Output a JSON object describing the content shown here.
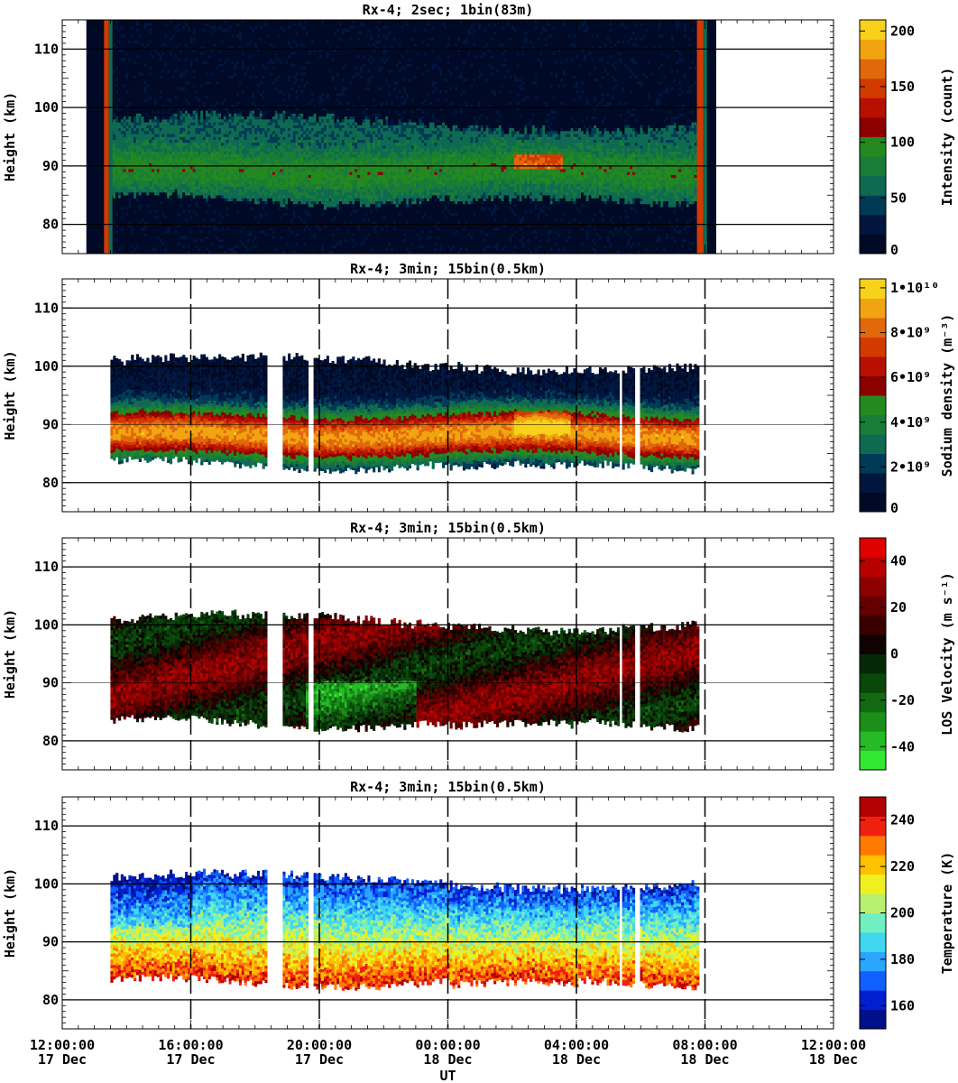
{
  "chart_data": [
    {
      "type": "heatmap",
      "title": "Rx-4;  2sec; 1bin(83m)",
      "ylabel": "Height (km)",
      "ylim": [
        75,
        115
      ],
      "yticks": [
        80,
        90,
        100,
        110
      ],
      "colorbar": {
        "label": "Intensity (count)",
        "ticks": [
          "0",
          "50",
          "100",
          "150",
          "200"
        ],
        "tick_values": [
          0,
          50,
          100,
          150,
          200
        ],
        "range": [
          0,
          210
        ],
        "colors": [
          "#000a26",
          "#00163f",
          "#003b55",
          "#0f6a52",
          "#1a7d37",
          "#248a1f",
          "#8c0000",
          "#b81000",
          "#d23a00",
          "#e2680c",
          "#f0a40f",
          "#f7d11a"
        ]
      },
      "data_range_hours": [
        13.5,
        31.8
      ],
      "layer": {
        "bottom_km": 84,
        "top_km": 96,
        "peak_km": 89
      }
    },
    {
      "type": "heatmap",
      "title": "Rx-4; 3min; 15bin(0.5km)",
      "ylabel": "Height (km)",
      "ylim": [
        75,
        115
      ],
      "yticks": [
        80,
        90,
        100,
        110
      ],
      "colorbar": {
        "label": "Sodium density (m⁻³)",
        "ticks": [
          "0",
          "2•10⁹",
          "4•10⁹",
          "6•10⁹",
          "8•10⁹",
          "1•10¹⁰"
        ],
        "tick_values": [
          0,
          2,
          4,
          6,
          8,
          10
        ],
        "range": [
          0,
          10.4
        ],
        "colors": [
          "#000a26",
          "#00163f",
          "#003b55",
          "#0f6a52",
          "#1a7d37",
          "#248a1f",
          "#8c0000",
          "#b81000",
          "#d23a00",
          "#e2680c",
          "#f0a40f",
          "#f7d11a"
        ]
      },
      "data_range_hours": [
        13.5,
        31.8
      ],
      "layer": {
        "bottom_km": 83,
        "top_km": 99,
        "peak_km": 88
      }
    },
    {
      "type": "heatmap",
      "title": "Rx-4; 3min; 15bin(0.5km)",
      "ylabel": "Height (km)",
      "ylim": [
        75,
        115
      ],
      "yticks": [
        80,
        90,
        100,
        110
      ],
      "colorbar": {
        "label": "LOS Velocity (m s⁻¹)",
        "ticks": [
          "-40",
          "-20",
          "0",
          "20",
          "40"
        ],
        "tick_values": [
          -40,
          -20,
          0,
          20,
          40
        ],
        "range": [
          -50,
          50
        ],
        "colors": [
          "#33e833",
          "#25bb25",
          "#1a8f1a",
          "#116a11",
          "#0a470a",
          "#052805",
          "#0f0200",
          "#3a0000",
          "#640000",
          "#8e0000",
          "#b80000",
          "#e00000"
        ]
      },
      "data_range_hours": [
        13.5,
        31.8
      ],
      "layer": {
        "bottom_km": 83,
        "top_km": 99,
        "peak_km": 90
      }
    },
    {
      "type": "heatmap",
      "title": "Rx-4; 3min; 15bin(0.5km)",
      "ylabel": "Height (km)",
      "ylim": [
        75,
        115
      ],
      "yticks": [
        80,
        90,
        100,
        110
      ],
      "colorbar": {
        "label": "Temperature (K)",
        "ticks": [
          "160",
          "180",
          "200",
          "220",
          "240"
        ],
        "tick_values": [
          160,
          180,
          200,
          220,
          240
        ],
        "range": [
          150,
          250
        ],
        "colors": [
          "#00108a",
          "#0020d0",
          "#1060ff",
          "#2aa6ff",
          "#40d8f0",
          "#70f0c0",
          "#b8f070",
          "#f0f020",
          "#ffc000",
          "#ff7a00",
          "#f02010",
          "#b40000"
        ]
      },
      "data_range_hours": [
        13.5,
        31.8
      ],
      "layer": {
        "bottom_km": 83,
        "top_km": 99,
        "peak_km": 88
      }
    }
  ],
  "x_axis": {
    "label": "UT",
    "range_hours": [
      12,
      36
    ],
    "ticks": [
      {
        "time": "12:00:00",
        "date": "17 Dec",
        "hours": 12
      },
      {
        "time": "16:00:00",
        "date": "17 Dec",
        "hours": 16
      },
      {
        "time": "20:00:00",
        "date": "17 Dec",
        "hours": 20
      },
      {
        "time": "00:00:00",
        "date": "18 Dec",
        "hours": 24
      },
      {
        "time": "04:00:00",
        "date": "18 Dec",
        "hours": 28
      },
      {
        "time": "08:00:00",
        "date": "18 Dec",
        "hours": 32
      },
      {
        "time": "12:00:00",
        "date": "18 Dec",
        "hours": 36
      }
    ]
  }
}
